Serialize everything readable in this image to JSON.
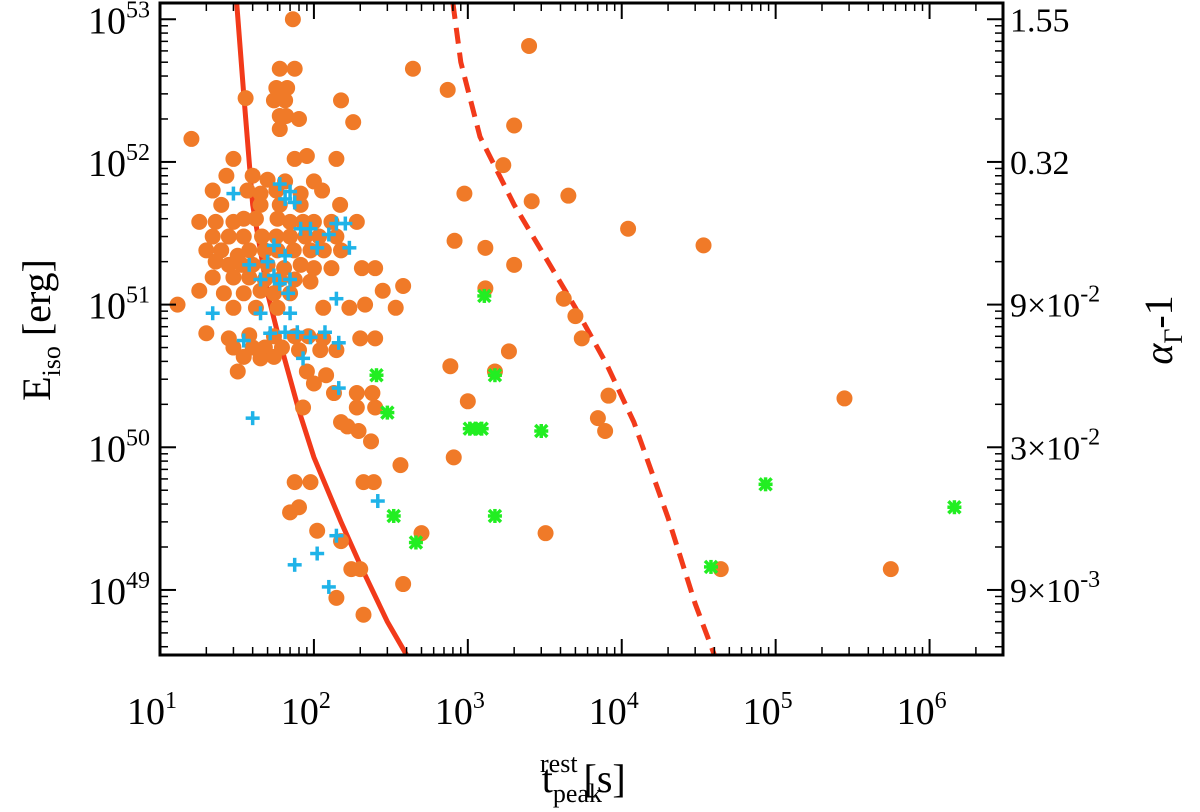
{
  "chart_data": {
    "type": "scatter",
    "x_scale": "log",
    "y_scale": "log",
    "xlim": [
      10,
      3000000
    ],
    "ylim": [
      3.5e+48,
      1.3e+53
    ],
    "xlabel": {
      "main": "t",
      "sup": "rest",
      "sub": "peak",
      "unit": "[s]"
    },
    "ylabel": {
      "main": "E",
      "sub": "iso",
      "unit": "[erg]"
    },
    "right_ylabel": {
      "main": "α",
      "sub": "Γ",
      "suffix": "-1"
    },
    "x_ticks": [
      {
        "value": 10,
        "base": "10",
        "exp": "1"
      },
      {
        "value": 100,
        "base": "10",
        "exp": "2"
      },
      {
        "value": 1000,
        "base": "10",
        "exp": "3"
      },
      {
        "value": 10000,
        "base": "10",
        "exp": "4"
      },
      {
        "value": 100000,
        "base": "10",
        "exp": "5"
      },
      {
        "value": 1000000,
        "base": "10",
        "exp": "6"
      }
    ],
    "y_ticks": [
      {
        "value": 1e+49,
        "base": "10",
        "exp": "49"
      },
      {
        "value": 1e+50,
        "base": "10",
        "exp": "50"
      },
      {
        "value": 1e+51,
        "base": "10",
        "exp": "51"
      },
      {
        "value": 1e+52,
        "base": "10",
        "exp": "52"
      },
      {
        "value": 1e+53,
        "base": "10",
        "exp": "53"
      }
    ],
    "right_ticks": [
      {
        "y": 1e+49,
        "label": "9×10",
        "exp": "-3"
      },
      {
        "y": 1e+50,
        "label": "3×10",
        "exp": "-2"
      },
      {
        "y": 1e+51,
        "label": "9×10",
        "exp": "-2"
      },
      {
        "y": 1e+52,
        "label": "0.32",
        "exp": ""
      },
      {
        "y": 1e+53,
        "label": "1.55",
        "exp": ""
      }
    ],
    "colors": {
      "orange": "#f07a28",
      "cyan": "#1fb3e8",
      "green": "#22ee22",
      "curve": "#f23a1a",
      "axis": "#000000"
    },
    "curves": [
      {
        "name": "solid",
        "style": "solid",
        "points": [
          [
            31.5,
            1.3e+53
          ],
          [
            35,
            3e+52
          ],
          [
            40,
            5e+51
          ],
          [
            50,
            1.2e+51
          ],
          [
            60,
            5.5e+50
          ],
          [
            80,
            1.8e+50
          ],
          [
            100,
            8.5e+49
          ],
          [
            150,
            3e+49
          ],
          [
            200,
            1.5e+49
          ],
          [
            300,
            6e+48
          ],
          [
            400,
            3.5e+48
          ]
        ]
      },
      {
        "name": "dashed",
        "style": "dashed",
        "points": [
          [
            800,
            1.3e+53
          ],
          [
            900,
            5e+52
          ],
          [
            1200,
            1.5e+52
          ],
          [
            2000,
            5e+51
          ],
          [
            3000,
            2.4e+51
          ],
          [
            5000,
            9.5e+50
          ],
          [
            8000,
            3.8e+50
          ],
          [
            12000,
            1.5e+50
          ],
          [
            20000,
            3.2e+49
          ],
          [
            30000,
            8e+48
          ],
          [
            40000,
            3.5e+48
          ]
        ]
      }
    ],
    "series": [
      {
        "name": "orange-circles",
        "marker": "circle",
        "color": "#f07a28",
        "points": [
          [
            73,
            1e+53
          ],
          [
            60,
            4.5e+52
          ],
          [
            75,
            4.5e+52
          ],
          [
            57,
            3.3e+52
          ],
          [
            67,
            3.3e+52
          ],
          [
            55,
            2.7e+52
          ],
          [
            65,
            2.7e+52
          ],
          [
            60,
            2.1e+52
          ],
          [
            66,
            2.1e+52
          ],
          [
            80,
            2e+52
          ],
          [
            36,
            2.8e+52
          ],
          [
            60,
            1.7e+52
          ],
          [
            150,
            2.7e+52
          ],
          [
            180,
            1.9e+52
          ],
          [
            16,
            1.45e+52
          ],
          [
            30,
            1.05e+52
          ],
          [
            75,
            1.05e+52
          ],
          [
            90,
            1.1e+52
          ],
          [
            140,
            1.05e+52
          ],
          [
            27,
            8e+51
          ],
          [
            40,
            8e+51
          ],
          [
            50,
            7.5e+51
          ],
          [
            65,
            7.3e+51
          ],
          [
            100,
            7.3e+51
          ],
          [
            22,
            6.3e+51
          ],
          [
            37,
            6.3e+51
          ],
          [
            45,
            6e+51
          ],
          [
            57,
            6.3e+51
          ],
          [
            82,
            6e+51
          ],
          [
            113,
            6.3e+51
          ],
          [
            25,
            5e+51
          ],
          [
            45,
            5e+51
          ],
          [
            60,
            5e+51
          ],
          [
            82,
            5e+51
          ],
          [
            148,
            5e+51
          ],
          [
            18,
            3.8e+51
          ],
          [
            23,
            3.8e+51
          ],
          [
            30,
            3.8e+51
          ],
          [
            35,
            4e+51
          ],
          [
            42,
            4e+51
          ],
          [
            58,
            4e+51
          ],
          [
            70,
            3.8e+51
          ],
          [
            85,
            3.8e+51
          ],
          [
            100,
            3.8e+51
          ],
          [
            130,
            3.8e+51
          ],
          [
            190,
            3.8e+51
          ],
          [
            22,
            3e+51
          ],
          [
            28,
            3e+51
          ],
          [
            35,
            3e+51
          ],
          [
            46,
            3e+51
          ],
          [
            57,
            3e+51
          ],
          [
            70,
            3e+51
          ],
          [
            88,
            3e+51
          ],
          [
            108,
            3e+51
          ],
          [
            140,
            3e+51
          ],
          [
            20,
            2.4e+51
          ],
          [
            25,
            2.4e+51
          ],
          [
            32,
            2.2e+51
          ],
          [
            38,
            2.4e+51
          ],
          [
            48,
            2.4e+51
          ],
          [
            58,
            2.4e+51
          ],
          [
            74,
            2.4e+51
          ],
          [
            95,
            2.4e+51
          ],
          [
            116,
            2.4e+51
          ],
          [
            150,
            2.4e+51
          ],
          [
            23,
            2e+51
          ],
          [
            28,
            1.9e+51
          ],
          [
            34,
            1.9e+51
          ],
          [
            40,
            1.9e+51
          ],
          [
            50,
            1.9e+51
          ],
          [
            64,
            1.8e+51
          ],
          [
            82,
            1.9e+51
          ],
          [
            100,
            1.8e+51
          ],
          [
            130,
            1.8e+51
          ],
          [
            205,
            1.8e+51
          ],
          [
            250,
            1.8e+51
          ],
          [
            22,
            1.55e+51
          ],
          [
            30,
            1.55e+51
          ],
          [
            38,
            1.55e+51
          ],
          [
            48,
            1.5e+51
          ],
          [
            60,
            1.5e+51
          ],
          [
            75,
            1.5e+51
          ],
          [
            95,
            1.45e+51
          ],
          [
            18,
            1.25e+51
          ],
          [
            26,
            1.2e+51
          ],
          [
            35,
            1.2e+51
          ],
          [
            45,
            1.25e+51
          ],
          [
            55,
            1.2e+51
          ],
          [
            70,
            1.2e+51
          ],
          [
            280,
            1.25e+51
          ],
          [
            380,
            1.35e+51
          ],
          [
            13,
            1e+51
          ],
          [
            30,
            9.5e+50
          ],
          [
            42,
            9.5e+50
          ],
          [
            58,
            9.5e+50
          ],
          [
            115,
            9.5e+50
          ],
          [
            170,
            9.5e+50
          ],
          [
            215,
            1e+51
          ],
          [
            340,
            9.5e+50
          ],
          [
            20,
            6.3e+50
          ],
          [
            28,
            5.8e+50
          ],
          [
            38,
            6.1e+50
          ],
          [
            55,
            6e+50
          ],
          [
            75,
            6e+50
          ],
          [
            92,
            6e+50
          ],
          [
            115,
            5.8e+50
          ],
          [
            200,
            5.8e+50
          ],
          [
            250,
            5.8e+50
          ],
          [
            30,
            5e+50
          ],
          [
            40,
            5e+50
          ],
          [
            48,
            5e+50
          ],
          [
            62,
            5e+50
          ],
          [
            80,
            4.8e+50
          ],
          [
            110,
            4.8e+50
          ],
          [
            140,
            4.8e+50
          ],
          [
            35,
            4.3e+50
          ],
          [
            45,
            4.2e+50
          ],
          [
            55,
            4.3e+50
          ],
          [
            32,
            3.4e+50
          ],
          [
            90,
            3.4e+50
          ],
          [
            120,
            3.2e+50
          ],
          [
            100,
            2.8e+50
          ],
          [
            135,
            2.4e+50
          ],
          [
            190,
            2.4e+50
          ],
          [
            240,
            2.4e+50
          ],
          [
            85,
            1.9e+50
          ],
          [
            190,
            1.9e+50
          ],
          [
            250,
            1.9e+50
          ],
          [
            150,
            1.5e+50
          ],
          [
            165,
            1.4e+50
          ],
          [
            195,
            1.3e+50
          ],
          [
            235,
            1.1e+50
          ],
          [
            365,
            7.5e+49
          ],
          [
            75,
            5.7e+49
          ],
          [
            95,
            5.7e+49
          ],
          [
            210,
            5.7e+49
          ],
          [
            245,
            5.7e+49
          ],
          [
            70,
            3.5e+49
          ],
          [
            80,
            3.8e+49
          ],
          [
            105,
            2.6e+49
          ],
          [
            150,
            2.2e+49
          ],
          [
            175,
            1.4e+49
          ],
          [
            200,
            1.4e+49
          ],
          [
            380,
            1.1e+49
          ],
          [
            140,
            8.8e+48
          ],
          [
            210,
            6.7e+48
          ],
          [
            440,
            4.5e+52
          ],
          [
            740,
            3.2e+52
          ],
          [
            2500,
            6.5e+52
          ],
          [
            2000,
            1.8e+52
          ],
          [
            1700,
            9.5e+51
          ],
          [
            950,
            6e+51
          ],
          [
            2600,
            5.3e+51
          ],
          [
            4500,
            5.8e+51
          ],
          [
            11000,
            3.4e+51
          ],
          [
            34000,
            2.6e+51
          ],
          [
            820,
            2.8e+51
          ],
          [
            1300,
            2.5e+51
          ],
          [
            2000,
            1.9e+51
          ],
          [
            1300,
            1.3e+51
          ],
          [
            4200,
            1.1e+51
          ],
          [
            5000,
            8.3e+50
          ],
          [
            5500,
            5.8e+50
          ],
          [
            1850,
            4.7e+50
          ],
          [
            1500,
            3.4e+50
          ],
          [
            770,
            3.7e+50
          ],
          [
            1000,
            2.1e+50
          ],
          [
            8200,
            2.3e+50
          ],
          [
            7000,
            1.6e+50
          ],
          [
            7800,
            1.3e+50
          ],
          [
            280000,
            2.2e+50
          ],
          [
            810,
            8.5e+49
          ],
          [
            3200,
            2.5e+49
          ],
          [
            500,
            2.5e+49
          ],
          [
            44000,
            1.4e+49
          ],
          [
            560000,
            1.4e+49
          ]
        ]
      },
      {
        "name": "cyan-plus",
        "marker": "plus",
        "color": "#1fb3e8",
        "points": [
          [
            30,
            6e+51
          ],
          [
            60,
            7e+51
          ],
          [
            70,
            6.2e+51
          ],
          [
            65,
            5.5e+51
          ],
          [
            75,
            5.2e+51
          ],
          [
            82,
            3.4e+51
          ],
          [
            95,
            3.4e+51
          ],
          [
            140,
            3.7e+51
          ],
          [
            160,
            3.7e+51
          ],
          [
            125,
            3.1e+51
          ],
          [
            105,
            2.5e+51
          ],
          [
            170,
            2.5e+51
          ],
          [
            55,
            2.6e+51
          ],
          [
            65,
            2.2e+51
          ],
          [
            50,
            2e+51
          ],
          [
            38,
            1.9e+51
          ],
          [
            45,
            1.5e+51
          ],
          [
            55,
            1.6e+51
          ],
          [
            60,
            1.4e+51
          ],
          [
            70,
            1.5e+51
          ],
          [
            68,
            1.2e+51
          ],
          [
            140,
            1.1e+51
          ],
          [
            22,
            8.7e+50
          ],
          [
            45,
            8.7e+50
          ],
          [
            70,
            8.7e+50
          ],
          [
            52,
            6.3e+50
          ],
          [
            65,
            6.4e+50
          ],
          [
            78,
            6.4e+50
          ],
          [
            95,
            5.9e+50
          ],
          [
            35,
            5.6e+50
          ],
          [
            118,
            6.4e+50
          ],
          [
            145,
            5.4e+50
          ],
          [
            85,
            4.2e+50
          ],
          [
            145,
            2.6e+50
          ],
          [
            40,
            1.6e+50
          ],
          [
            260,
            4.2e+49
          ],
          [
            140,
            2.4e+49
          ],
          [
            105,
            1.8e+49
          ],
          [
            75,
            1.5e+49
          ],
          [
            125,
            1.05e+49
          ]
        ]
      },
      {
        "name": "green-crosses",
        "marker": "cross",
        "color": "#22ee22",
        "points": [
          [
            1280,
            1.15e+51
          ],
          [
            255,
            3.2e+50
          ],
          [
            1500,
            3.2e+50
          ],
          [
            300,
            1.75e+50
          ],
          [
            1030,
            1.35e+50
          ],
          [
            1120,
            1.35e+50
          ],
          [
            1230,
            1.35e+50
          ],
          [
            3000,
            1.3e+50
          ],
          [
            330,
            3.3e+49
          ],
          [
            1500,
            3.3e+49
          ],
          [
            460,
            2.15e+49
          ],
          [
            86000,
            5.5e+49
          ],
          [
            1450000,
            3.8e+49
          ],
          [
            38000,
            1.45e+49
          ]
        ]
      }
    ]
  }
}
